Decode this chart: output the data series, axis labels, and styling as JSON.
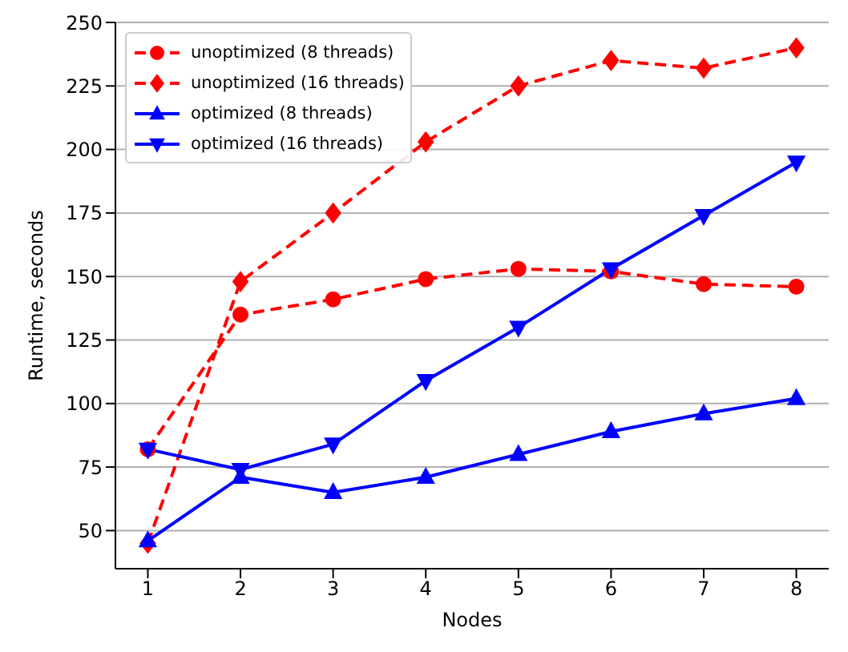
{
  "chart_data": {
    "type": "line",
    "xlabel": "Nodes",
    "ylabel": "Runtime, seconds",
    "x": [
      1,
      2,
      3,
      4,
      5,
      6,
      7,
      8
    ],
    "series": [
      {
        "name": "unoptimized (8 threads)",
        "color": "#ff0000",
        "marker": "circle",
        "line_style": "dashed",
        "values": [
          82,
          135,
          141,
          149,
          153,
          152,
          147,
          146
        ]
      },
      {
        "name": "unoptimized (16 threads)",
        "color": "#ff0000",
        "marker": "diamond",
        "line_style": "dashed",
        "values": [
          45,
          148,
          175,
          203,
          225,
          235,
          232,
          240
        ]
      },
      {
        "name": "optimized (8 threads)",
        "color": "#0000ff",
        "marker": "triangle",
        "line_style": "solid",
        "values": [
          46,
          71,
          65,
          71,
          80,
          89,
          96,
          102
        ]
      },
      {
        "name": "optimized (16 threads)",
        "color": "#0000ff",
        "marker": "triangle-down",
        "line_style": "solid",
        "values": [
          82,
          74,
          84,
          109,
          130,
          153,
          174,
          195
        ]
      }
    ],
    "xlim": [
      0.65,
      8.35
    ],
    "xticks": [
      1,
      2,
      3,
      4,
      5,
      6,
      7,
      8
    ],
    "ylim": [
      35,
      250
    ],
    "yticks": [
      50,
      75,
      100,
      125,
      150,
      175,
      200,
      225,
      250
    ],
    "grid": "y",
    "legend": "top left"
  }
}
